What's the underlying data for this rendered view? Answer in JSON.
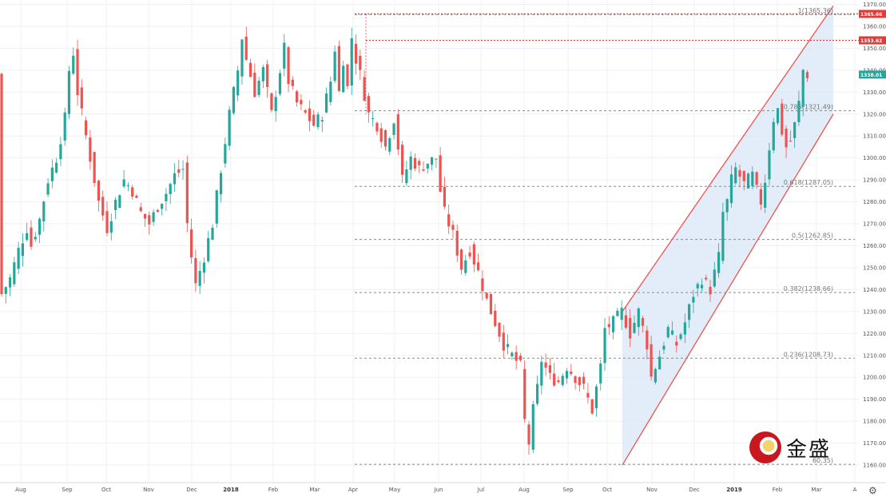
{
  "chart_data": {
    "type": "candlestick",
    "title": "",
    "ylim": [
      1152,
      1372
    ],
    "y_ticks": [
      1160,
      1170,
      1180,
      1190,
      1200,
      1210,
      1220,
      1230,
      1240,
      1250,
      1260,
      1270,
      1280,
      1290,
      1300,
      1310,
      1320,
      1330,
      1340,
      1350,
      1360,
      1370
    ],
    "x_ticks": [
      {
        "label": "Aug",
        "bold": false
      },
      {
        "label": "Sep",
        "bold": false
      },
      {
        "label": "Oct",
        "bold": false
      },
      {
        "label": "Nov",
        "bold": false
      },
      {
        "label": "Dec",
        "bold": false
      },
      {
        "label": "2018",
        "bold": true
      },
      {
        "label": "Feb",
        "bold": false
      },
      {
        "label": "Mar",
        "bold": false
      },
      {
        "label": "Apr",
        "bold": false
      },
      {
        "label": "May",
        "bold": false
      },
      {
        "label": "Jun",
        "bold": false
      },
      {
        "label": "Jul",
        "bold": false
      },
      {
        "label": "Aug",
        "bold": false
      },
      {
        "label": "Sep",
        "bold": false
      },
      {
        "label": "Oct",
        "bold": false
      },
      {
        "label": "Nov",
        "bold": false
      },
      {
        "label": "Dec",
        "bold": false
      },
      {
        "label": "2019",
        "bold": true
      },
      {
        "label": "Feb",
        "bold": false
      },
      {
        "label": "Mar",
        "bold": false
      },
      {
        "label": "A",
        "bold": false
      }
    ],
    "price_path": [
      [
        0,
        1238
      ],
      [
        2,
        1245
      ],
      [
        4,
        1258
      ],
      [
        6,
        1268
      ],
      [
        7,
        1260
      ],
      [
        9,
        1272
      ],
      [
        11,
        1290
      ],
      [
        12,
        1295
      ],
      [
        13,
        1300
      ],
      [
        15,
        1318
      ],
      [
        16,
        1340
      ],
      [
        17,
        1348
      ],
      [
        18,
        1330
      ],
      [
        19,
        1320
      ],
      [
        20,
        1310
      ],
      [
        21,
        1300
      ],
      [
        22,
        1290
      ],
      [
        23,
        1280
      ],
      [
        25,
        1268
      ],
      [
        27,
        1280
      ],
      [
        29,
        1290
      ],
      [
        31,
        1285
      ],
      [
        33,
        1275
      ],
      [
        35,
        1270
      ],
      [
        37,
        1278
      ],
      [
        39,
        1284
      ],
      [
        41,
        1292
      ],
      [
        43,
        1295
      ],
      [
        44,
        1270
      ],
      [
        45,
        1255
      ],
      [
        46,
        1242
      ],
      [
        48,
        1255
      ],
      [
        50,
        1270
      ],
      [
        52,
        1295
      ],
      [
        54,
        1320
      ],
      [
        56,
        1340
      ],
      [
        57,
        1355
      ],
      [
        58,
        1345
      ],
      [
        60,
        1330
      ],
      [
        62,
        1340
      ],
      [
        63,
        1330
      ],
      [
        64,
        1320
      ],
      [
        66,
        1340
      ],
      [
        67,
        1350
      ],
      [
        68,
        1335
      ],
      [
        70,
        1325
      ],
      [
        72,
        1320
      ],
      [
        74,
        1315
      ],
      [
        76,
        1320
      ],
      [
        78,
        1335
      ],
      [
        79,
        1350
      ],
      [
        80,
        1330
      ],
      [
        81,
        1345
      ],
      [
        82,
        1332
      ],
      [
        83,
        1355
      ],
      [
        84,
        1345
      ],
      [
        85,
        1338
      ],
      [
        87,
        1320
      ],
      [
        89,
        1315
      ],
      [
        91,
        1305
      ],
      [
        93,
        1318
      ],
      [
        94,
        1305
      ],
      [
        95,
        1290
      ],
      [
        97,
        1300
      ],
      [
        99,
        1295
      ],
      [
        101,
        1298
      ],
      [
        103,
        1300
      ],
      [
        104,
        1285
      ],
      [
        105,
        1275
      ],
      [
        107,
        1265
      ],
      [
        109,
        1250
      ],
      [
        111,
        1258
      ],
      [
        113,
        1248
      ],
      [
        115,
        1235
      ],
      [
        117,
        1225
      ],
      [
        119,
        1215
      ],
      [
        121,
        1210
      ],
      [
        123,
        1205
      ],
      [
        124,
        1180
      ],
      [
        125,
        1170
      ],
      [
        126,
        1185
      ],
      [
        127,
        1195
      ],
      [
        128,
        1208
      ],
      [
        130,
        1200
      ],
      [
        132,
        1198
      ],
      [
        134,
        1205
      ],
      [
        136,
        1200
      ],
      [
        138,
        1195
      ],
      [
        140,
        1185
      ],
      [
        141,
        1195
      ],
      [
        142,
        1205
      ],
      [
        143,
        1222
      ],
      [
        145,
        1225
      ],
      [
        147,
        1230
      ],
      [
        149,
        1220
      ],
      [
        151,
        1230
      ],
      [
        153,
        1215
      ],
      [
        154,
        1200
      ],
      [
        156,
        1210
      ],
      [
        158,
        1222
      ],
      [
        160,
        1215
      ],
      [
        162,
        1225
      ],
      [
        164,
        1238
      ],
      [
        166,
        1245
      ],
      [
        168,
        1240
      ],
      [
        170,
        1255
      ],
      [
        171,
        1275
      ],
      [
        172,
        1280
      ],
      [
        173,
        1290
      ],
      [
        174,
        1295
      ],
      [
        176,
        1288
      ],
      [
        178,
        1292
      ],
      [
        179,
        1285
      ],
      [
        180,
        1280
      ],
      [
        181,
        1290
      ],
      [
        182,
        1305
      ],
      [
        183,
        1318
      ],
      [
        184,
        1322
      ],
      [
        185,
        1312
      ],
      [
        186,
        1305
      ],
      [
        187,
        1308
      ],
      [
        188,
        1315
      ],
      [
        189,
        1325
      ],
      [
        190,
        1340
      ],
      [
        191,
        1338
      ]
    ],
    "fib_levels": [
      {
        "ratio": "1",
        "value": 1365.36,
        "label": "1(1365.36)"
      },
      {
        "ratio": "0.786",
        "value": 1321.49,
        "label": "0.786(1321.49)"
      },
      {
        "ratio": "0.618",
        "value": 1287.05,
        "label": "0.618(1287.05)"
      },
      {
        "ratio": "0.5",
        "value": 1262.85,
        "label": "0.5(1262.85)"
      },
      {
        "ratio": "0.382",
        "value": 1238.66,
        "label": "0.382(1238.66)"
      },
      {
        "ratio": "0.236",
        "value": 1208.73,
        "label": "0.236(1208.73)"
      },
      {
        "ratio": "0",
        "value": 1160.35,
        "label": "60.35)"
      }
    ],
    "resistance_lines": [
      1365.66,
      1353.62
    ],
    "price_tags": [
      {
        "value": 1365.66,
        "label": "1365.66",
        "color": "#e53935"
      },
      {
        "value": 1353.62,
        "label": "1353.62",
        "color": "#e53935"
      },
      {
        "value": 1338.01,
        "label": "1338.01",
        "color": "#26a69a"
      }
    ],
    "channel": {
      "upper": [
        [
          1230,
          1230
        ],
        [
          1365,
          1365
        ]
      ],
      "lower": [
        [
          1160,
          1160
        ],
        [
          1320,
          1320
        ]
      ],
      "color": "#ef5350",
      "fill": "#dbe8f7"
    },
    "colors": {
      "up": "#26a69a",
      "down": "#ef5350",
      "grid": "#eef1f5"
    }
  },
  "logo": {
    "text": "金盛"
  },
  "settings_icon": "gear-icon"
}
